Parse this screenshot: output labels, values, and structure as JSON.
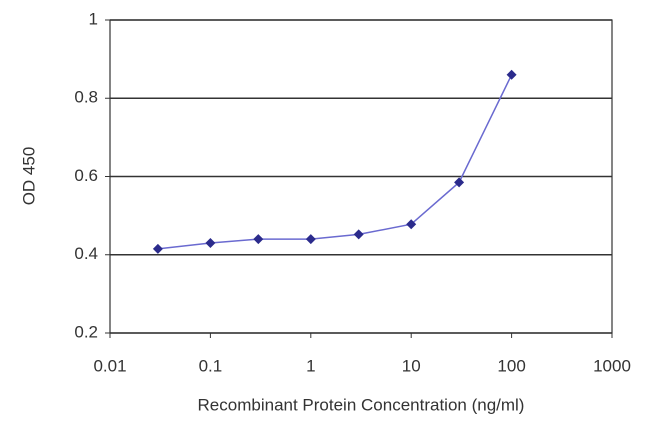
{
  "chart_data": {
    "type": "line",
    "x_label": "Recombinant Protein Concentration (ng/ml)",
    "y_label": "OD 450",
    "x": [
      0.03,
      0.1,
      0.3,
      1,
      3,
      10,
      30,
      100
    ],
    "series": [
      {
        "color": "#2b2b8c",
        "values": [
          0.415,
          0.43,
          0.44,
          0.44,
          0.452,
          0.478,
          0.585,
          0.86
        ]
      }
    ],
    "xlim": [
      0.01,
      1000
    ],
    "xticks": [
      0.01,
      0.1,
      1,
      10,
      100,
      1000
    ],
    "xscale": "log",
    "ylim": [
      0.2,
      1
    ],
    "yticks": [
      0.2,
      0.4,
      0.6,
      0.8,
      1
    ],
    "grid": true
  }
}
